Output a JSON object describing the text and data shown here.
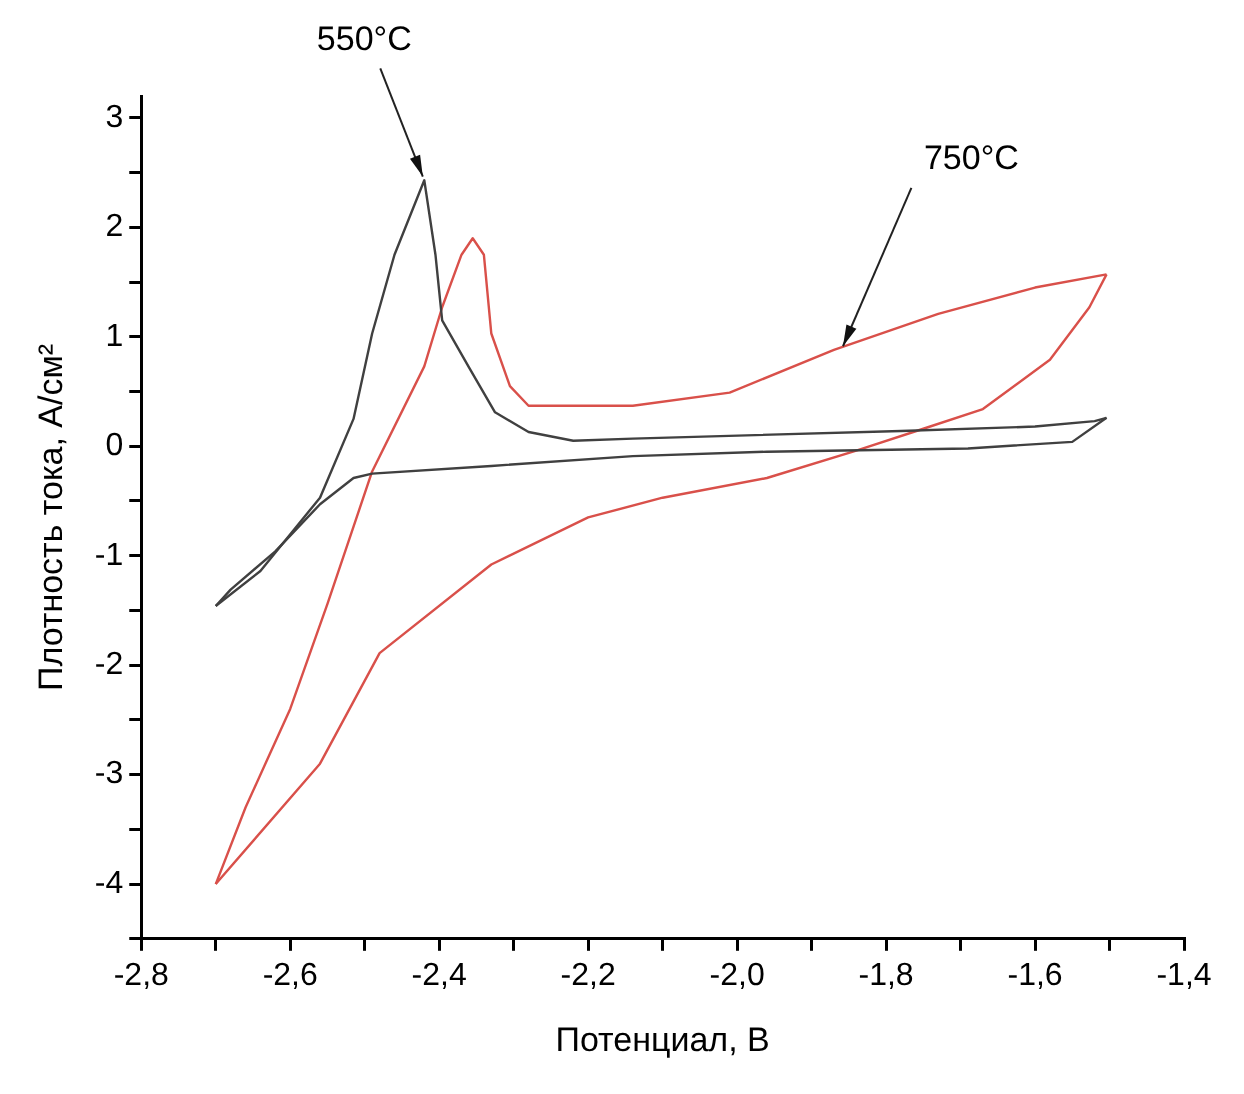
{
  "chart_data": {
    "type": "line",
    "xlabel": "Потенциал, В",
    "ylabel": "Плотность тока, А/см²",
    "xlim": [
      -2.8,
      -1.4
    ],
    "xticks": [
      {
        "value": -2.8,
        "label": "-2,8"
      },
      {
        "value": -2.7,
        "label": null
      },
      {
        "value": -2.6,
        "label": "-2,6"
      },
      {
        "value": -2.5,
        "label": null
      },
      {
        "value": -2.4,
        "label": "-2,4"
      },
      {
        "value": -2.3,
        "label": null
      },
      {
        "value": -2.2,
        "label": "-2,2"
      },
      {
        "value": -2.1,
        "label": null
      },
      {
        "value": -2.0,
        "label": "-2,0"
      },
      {
        "value": -1.9,
        "label": null
      },
      {
        "value": -1.8,
        "label": "-1,8"
      },
      {
        "value": -1.7,
        "label": null
      },
      {
        "value": -1.6,
        "label": "-1,6"
      },
      {
        "value": -1.5,
        "label": null
      },
      {
        "value": -1.4,
        "label": "-1,4"
      }
    ],
    "ylim": [
      -4.5,
      3.2
    ],
    "yticks": [
      {
        "value": -4.5,
        "label": null
      },
      -4,
      {
        "value": -3.5,
        "label": null
      },
      -3,
      {
        "value": -2.5,
        "label": null
      },
      -2,
      {
        "value": -1.5,
        "label": null
      },
      -1,
      {
        "value": -0.5,
        "label": null
      },
      0,
      {
        "value": 0.5,
        "label": null
      },
      1,
      {
        "value": 1.5,
        "label": null
      },
      2,
      {
        "value": 2.5,
        "label": null
      },
      3
    ],
    "grid": false,
    "legend": false,
    "series": [
      {
        "color": "#404040",
        "x": [
          -2.7,
          -2.64,
          -2.56,
          -2.515,
          -2.49,
          -2.46,
          -2.42,
          -2.405,
          -2.396,
          -2.36,
          -2.325,
          -2.28,
          -2.22,
          -2.14,
          -1.78,
          -1.6,
          -1.52,
          -1.504
        ],
        "values": [
          -1.46,
          -1.14,
          -0.47,
          0.25,
          1.03,
          1.75,
          2.43,
          1.75,
          1.15,
          0.72,
          0.31,
          0.13,
          0.05,
          0.07,
          0.14,
          0.18,
          0.23,
          0.26
        ]
      },
      {
        "color": "#404040",
        "x": [
          -2.7,
          -2.68,
          -2.62,
          -2.56,
          -2.515,
          -2.49,
          -2.33,
          -2.14,
          -1.96,
          -1.69,
          -1.55,
          -1.504
        ],
        "values": [
          -1.46,
          -1.31,
          -0.96,
          -0.53,
          -0.29,
          -0.25,
          -0.18,
          -0.09,
          -0.05,
          -0.02,
          0.04,
          0.26
        ]
      },
      {
        "color": "#d9504a",
        "x": [
          -2.7,
          -2.66,
          -2.6,
          -2.55,
          -2.49,
          -2.42,
          -2.396,
          -2.37,
          -2.355,
          -2.34,
          -2.33,
          -2.305,
          -2.28,
          -2.14,
          -2.01,
          -1.87,
          -1.73,
          -1.6,
          -1.504
        ],
        "values": [
          -4.0,
          -3.3,
          -2.4,
          -1.44,
          -0.23,
          0.73,
          1.27,
          1.75,
          1.9,
          1.75,
          1.03,
          0.55,
          0.37,
          0.37,
          0.49,
          0.88,
          1.21,
          1.45,
          1.57
        ]
      },
      {
        "color": "#d9504a",
        "x": [
          -2.7,
          -2.56,
          -2.48,
          -2.33,
          -2.2,
          -2.1,
          -1.96,
          -1.84,
          -1.75,
          -1.67,
          -1.58,
          -1.527,
          -1.504
        ],
        "values": [
          -4.0,
          -2.9,
          -1.89,
          -1.08,
          -0.65,
          -0.47,
          -0.29,
          -0.04,
          0.16,
          0.34,
          0.79,
          1.27,
          1.57
        ]
      }
    ],
    "annotations": [
      {
        "text": "550°C",
        "x": -2.42,
        "y": 2.43
      },
      {
        "text": "750°C",
        "x": -1.86,
        "y": 0.88
      }
    ]
  }
}
